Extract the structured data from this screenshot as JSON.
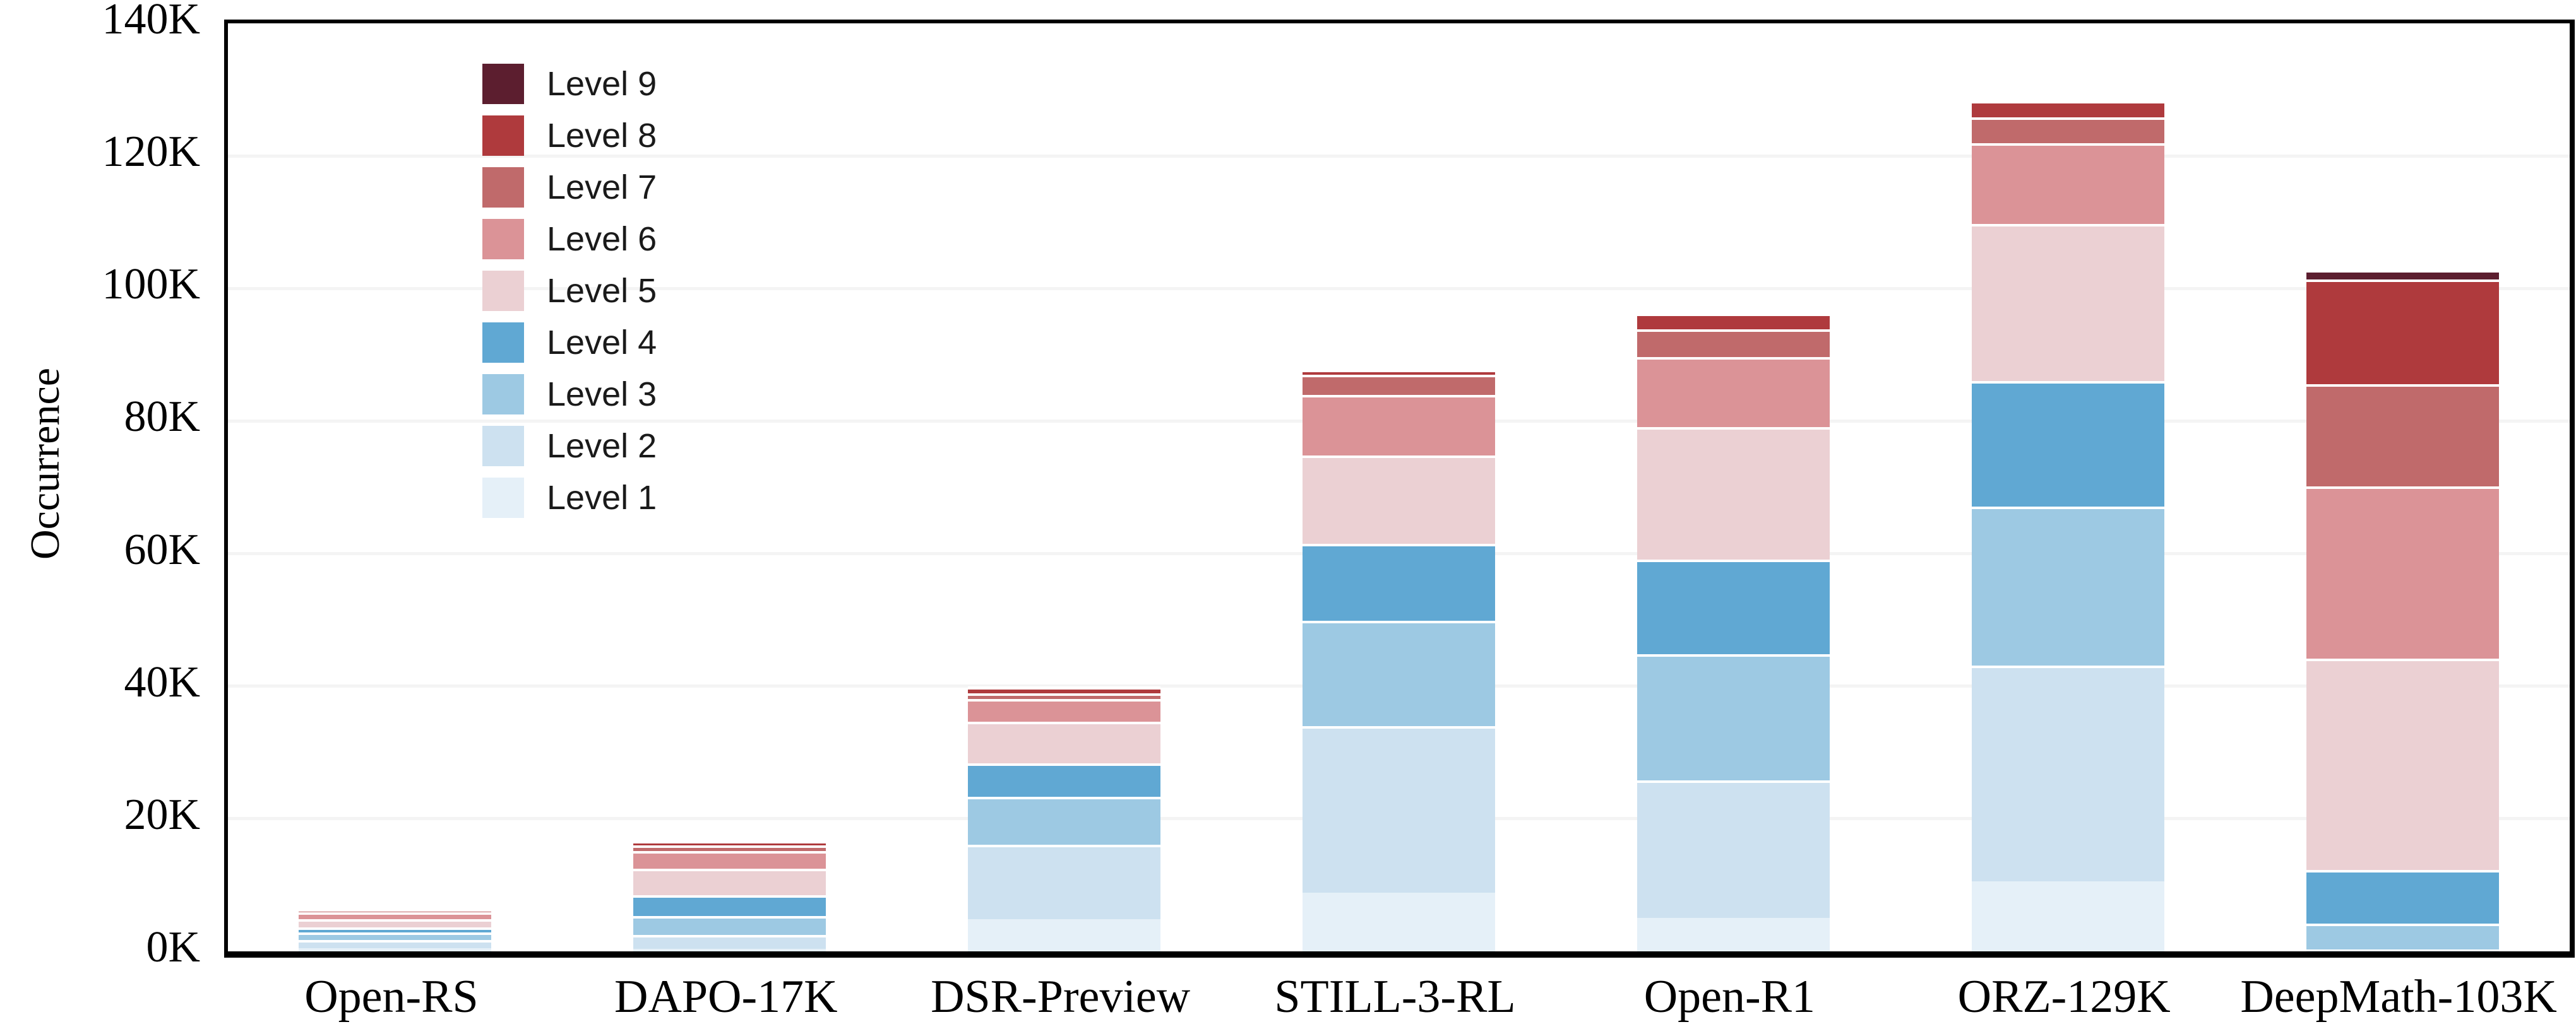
{
  "figure": {
    "ylabel": "Occurrence"
  },
  "chart_data": {
    "type": "bar",
    "stacked": true,
    "title": "",
    "xlabel": "",
    "ylabel": "Occurrence",
    "ylim": [
      0,
      140000
    ],
    "ytick_values": [
      0,
      20000,
      40000,
      60000,
      80000,
      100000,
      120000,
      140000
    ],
    "ytick_labels": [
      "0K",
      "20K",
      "40K",
      "60K",
      "80K",
      "100K",
      "120K",
      "140K"
    ],
    "grid": "horizontal",
    "legend_position": "upper left",
    "legend_order_top_to_bottom": [
      "Level 9",
      "Level 8",
      "Level 7",
      "Level 6",
      "Level 5",
      "Level 4",
      "Level 3",
      "Level 2",
      "Level 1"
    ],
    "categories": [
      "Open-RS",
      "DAPO-17K",
      "DSR-Preview",
      "STILL-3-RL",
      "Open-R1",
      "ORZ-129K",
      "DeepMath-103K"
    ],
    "series": [
      {
        "name": "Level 1",
        "color": "#E5F0F8",
        "values": [
          500,
          350,
          4850,
          8900,
          5050,
          10600,
          100
        ]
      },
      {
        "name": "Level 2",
        "color": "#CDE1F0",
        "values": [
          1250,
          2150,
          11200,
          25100,
          20700,
          32500,
          200
        ]
      },
      {
        "name": "Level 3",
        "color": "#9DC9E3",
        "values": [
          1150,
          2850,
          7300,
          15900,
          19100,
          24000,
          3900
        ]
      },
      {
        "name": "Level 4",
        "color": "#60A8D3",
        "values": [
          750,
          3150,
          5000,
          11600,
          14300,
          18900,
          8100
        ]
      },
      {
        "name": "Level 5",
        "color": "#EBD0D3",
        "values": [
          1200,
          3950,
          6300,
          13300,
          19900,
          23700,
          31900
        ]
      },
      {
        "name": "Level 6",
        "color": "#DB9397",
        "values": [
          1050,
          2700,
          3400,
          9100,
          10600,
          12200,
          25900
        ]
      },
      {
        "name": "Level 7",
        "color": "#C06A6B",
        "values": [
          500,
          800,
          900,
          3100,
          4200,
          3900,
          15500
        ]
      },
      {
        "name": "Level 8",
        "color": "#AF3A3D",
        "values": [
          400,
          750,
          900,
          800,
          2400,
          2500,
          15800
        ]
      },
      {
        "name": "Level 9",
        "color": "#5C1E2F",
        "values": [
          50,
          100,
          150,
          200,
          300,
          400,
          1400
        ]
      }
    ],
    "totals_approx": [
      6850,
      16800,
      40000,
      88000,
      96550,
      128700,
      102800
    ]
  }
}
